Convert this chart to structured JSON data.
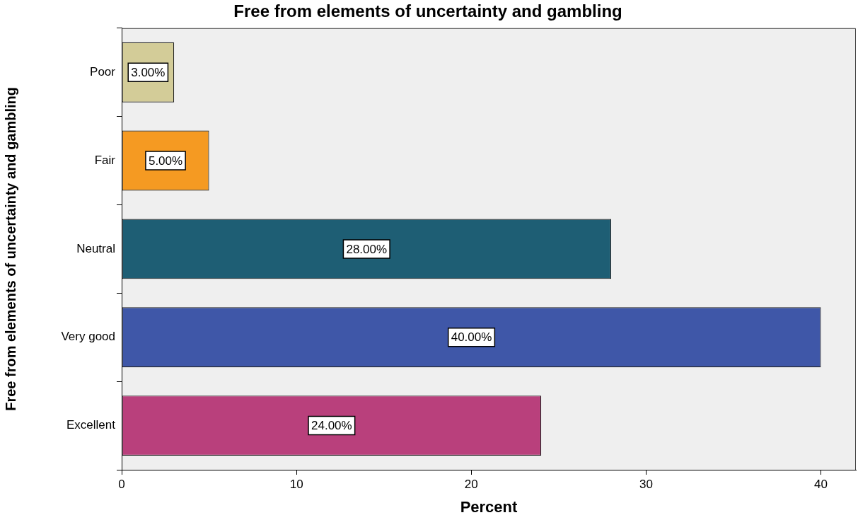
{
  "chart_data": {
    "type": "bar",
    "orientation": "horizontal",
    "title": "Free from elements of uncertainty and gambling",
    "xlabel": "Percent",
    "ylabel": "Free from elements of uncertainty and gambling",
    "categories": [
      "Poor",
      "Fair",
      "Neutral",
      "Very good",
      "Excellent"
    ],
    "values": [
      3,
      5,
      28,
      40,
      24
    ],
    "colors": [
      "#d3cc98",
      "#f59a22",
      "#1e5e74",
      "#3f57a8",
      "#b9407c"
    ],
    "value_labels": [
      "3.00%",
      "5.00%",
      "28.00%",
      "40.00%",
      "24.00%"
    ],
    "xlim": [
      0,
      42
    ],
    "xticks": [
      0,
      10,
      20,
      30,
      40
    ]
  }
}
